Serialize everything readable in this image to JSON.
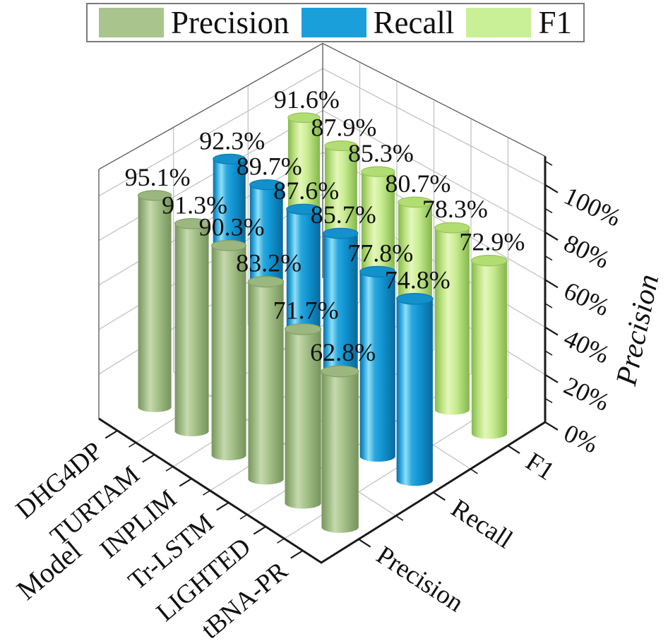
{
  "figure": {
    "background": "#ffffff"
  },
  "legend": {
    "border_color": "#7a7a7a",
    "items": [
      {
        "label": "Precision",
        "color": "#a9c48d"
      },
      {
        "label": "Recall",
        "color": "#1b9fdb"
      },
      {
        "label": "F1",
        "color": "#c9f097"
      }
    ]
  },
  "chart_data": {
    "type": "bar",
    "style": "3d-cylinder",
    "categories": [
      "DHG4DP",
      "TURTAM",
      "INPLIM",
      "Tr-LSTM",
      "LIGHTED",
      "tBNA-PR"
    ],
    "metric_ticks": [
      "Precision",
      "Recall",
      "F1"
    ],
    "series": [
      {
        "name": "Precision",
        "values": [
          95.1,
          91.3,
          90.3,
          83.2,
          71.7,
          62.8
        ],
        "value_labels": [
          "95.1%",
          "91.3%",
          "90.3%",
          "83.2%",
          "71.7%",
          "62.8%"
        ],
        "color": "#a9c48d",
        "top_color": "#9cb680",
        "top_stroke": "#82a066",
        "gradient": [
          [
            0,
            "#78955e"
          ],
          [
            0.18,
            "#9cb982"
          ],
          [
            0.36,
            "#c6d9ae"
          ],
          [
            0.58,
            "#a8c38c"
          ],
          [
            1,
            "#75935b"
          ]
        ]
      },
      {
        "name": "Recall",
        "values": [
          92.3,
          89.7,
          87.6,
          85.7,
          77.8,
          74.8
        ],
        "value_labels": [
          "92.3%",
          "89.7%",
          "87.6%",
          "85.7%",
          "77.8%",
          "74.8%"
        ],
        "color": "#1b9fdb",
        "top_color": "#1291cc",
        "top_stroke": "#0d7ab0",
        "gradient": [
          [
            0,
            "#0b6ca0"
          ],
          [
            0.12,
            "#2fa9e0"
          ],
          [
            0.25,
            "#90dff5"
          ],
          [
            0.42,
            "#2aa7df"
          ],
          [
            0.62,
            "#1095d2"
          ],
          [
            1,
            "#0a689b"
          ]
        ]
      },
      {
        "name": "F1",
        "values": [
          91.6,
          87.9,
          85.3,
          80.7,
          78.3,
          72.9
        ],
        "value_labels": [
          "91.6%",
          "87.9%",
          "85.3%",
          "80.7%",
          "78.3%",
          "72.9%"
        ],
        "color": "#c9f097",
        "top_color": "#b2dd72",
        "top_stroke": "#97c458",
        "gradient": [
          [
            0,
            "#85b94c"
          ],
          [
            0.2,
            "#bce182"
          ],
          [
            0.38,
            "#e4f7ba"
          ],
          [
            0.6,
            "#c9ed92"
          ],
          [
            1,
            "#83b74a"
          ]
        ]
      }
    ],
    "xlabel": "Model",
    "zlabel": "Precision",
    "z_tick_values": [
      0,
      20,
      40,
      60,
      80,
      100
    ],
    "z_tick_labels": [
      "0%",
      "20%",
      "40%",
      "60%",
      "80%",
      "100%"
    ],
    "z_minor_ticks": [
      10,
      30,
      50,
      70,
      90,
      110
    ],
    "zlim": [
      0,
      112
    ],
    "grid": true,
    "legend_position": "top",
    "axis_color": "#1a1a1a",
    "edge_color": "#555555",
    "grid_color": "#c2c2c2",
    "label_color": "#111111"
  }
}
